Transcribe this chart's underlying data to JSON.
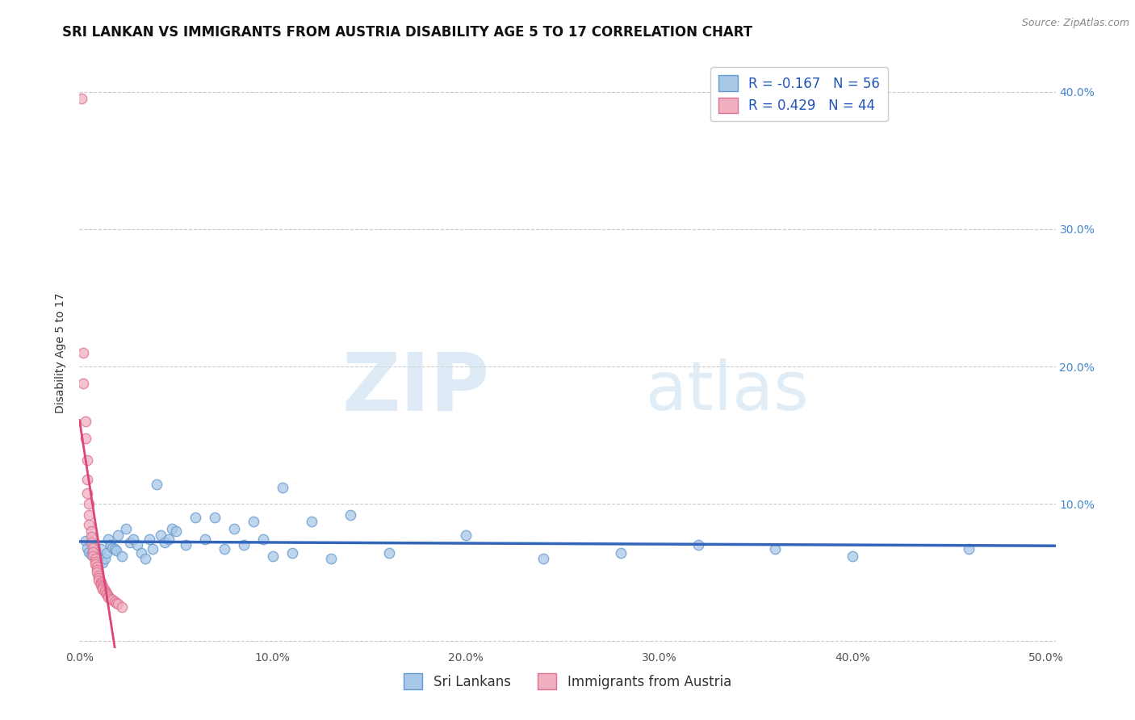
{
  "title": "SRI LANKAN VS IMMIGRANTS FROM AUSTRIA DISABILITY AGE 5 TO 17 CORRELATION CHART",
  "source": "Source: ZipAtlas.com",
  "ylabel": "Disability Age 5 to 17",
  "xlim": [
    0.0,
    0.505
  ],
  "ylim": [
    -0.005,
    0.425
  ],
  "xticks": [
    0.0,
    0.1,
    0.2,
    0.3,
    0.4,
    0.5
  ],
  "xtick_labels": [
    "0.0%",
    "10.0%",
    "20.0%",
    "30.0%",
    "40.0%",
    "50.0%"
  ],
  "yticks": [
    0.0,
    0.1,
    0.2,
    0.3,
    0.4
  ],
  "ytick_labels_right": [
    "",
    "10.0%",
    "20.0%",
    "30.0%",
    "40.0%"
  ],
  "blue_R": -0.167,
  "blue_N": 56,
  "pink_R": 0.429,
  "pink_N": 44,
  "blue_color": "#a8c8e8",
  "pink_color": "#f0b0c0",
  "blue_edge_color": "#6699cc",
  "pink_edge_color": "#e07090",
  "blue_line_color": "#3366bb",
  "pink_line_color": "#dd4477",
  "blue_scatter": [
    [
      0.003,
      0.073
    ],
    [
      0.004,
      0.068
    ],
    [
      0.005,
      0.065
    ],
    [
      0.006,
      0.063
    ],
    [
      0.007,
      0.07
    ],
    [
      0.008,
      0.066
    ],
    [
      0.009,
      0.06
    ],
    [
      0.01,
      0.062
    ],
    [
      0.011,
      0.067
    ],
    [
      0.012,
      0.057
    ],
    [
      0.013,
      0.06
    ],
    [
      0.014,
      0.064
    ],
    [
      0.015,
      0.074
    ],
    [
      0.016,
      0.07
    ],
    [
      0.017,
      0.068
    ],
    [
      0.018,
      0.067
    ],
    [
      0.019,
      0.066
    ],
    [
      0.02,
      0.077
    ],
    [
      0.022,
      0.062
    ],
    [
      0.024,
      0.082
    ],
    [
      0.026,
      0.072
    ],
    [
      0.028,
      0.074
    ],
    [
      0.03,
      0.07
    ],
    [
      0.032,
      0.064
    ],
    [
      0.034,
      0.06
    ],
    [
      0.036,
      0.074
    ],
    [
      0.038,
      0.067
    ],
    [
      0.04,
      0.114
    ],
    [
      0.042,
      0.077
    ],
    [
      0.044,
      0.072
    ],
    [
      0.046,
      0.074
    ],
    [
      0.048,
      0.082
    ],
    [
      0.05,
      0.08
    ],
    [
      0.055,
      0.07
    ],
    [
      0.06,
      0.09
    ],
    [
      0.065,
      0.074
    ],
    [
      0.07,
      0.09
    ],
    [
      0.075,
      0.067
    ],
    [
      0.08,
      0.082
    ],
    [
      0.085,
      0.07
    ],
    [
      0.09,
      0.087
    ],
    [
      0.095,
      0.074
    ],
    [
      0.1,
      0.062
    ],
    [
      0.105,
      0.112
    ],
    [
      0.11,
      0.064
    ],
    [
      0.12,
      0.087
    ],
    [
      0.13,
      0.06
    ],
    [
      0.14,
      0.092
    ],
    [
      0.16,
      0.064
    ],
    [
      0.2,
      0.077
    ],
    [
      0.24,
      0.06
    ],
    [
      0.28,
      0.064
    ],
    [
      0.32,
      0.07
    ],
    [
      0.36,
      0.067
    ],
    [
      0.4,
      0.062
    ],
    [
      0.46,
      0.067
    ]
  ],
  "pink_scatter": [
    [
      0.001,
      0.395
    ],
    [
      0.002,
      0.21
    ],
    [
      0.002,
      0.188
    ],
    [
      0.003,
      0.16
    ],
    [
      0.003,
      0.148
    ],
    [
      0.004,
      0.132
    ],
    [
      0.004,
      0.118
    ],
    [
      0.004,
      0.108
    ],
    [
      0.005,
      0.1
    ],
    [
      0.005,
      0.092
    ],
    [
      0.005,
      0.085
    ],
    [
      0.006,
      0.08
    ],
    [
      0.006,
      0.076
    ],
    [
      0.006,
      0.072
    ],
    [
      0.007,
      0.068
    ],
    [
      0.007,
      0.065
    ],
    [
      0.007,
      0.062
    ],
    [
      0.008,
      0.06
    ],
    [
      0.008,
      0.058
    ],
    [
      0.008,
      0.056
    ],
    [
      0.009,
      0.054
    ],
    [
      0.009,
      0.052
    ],
    [
      0.009,
      0.05
    ],
    [
      0.01,
      0.048
    ],
    [
      0.01,
      0.046
    ],
    [
      0.01,
      0.044
    ],
    [
      0.011,
      0.043
    ],
    [
      0.011,
      0.042
    ],
    [
      0.011,
      0.041
    ],
    [
      0.012,
      0.04
    ],
    [
      0.012,
      0.039
    ],
    [
      0.012,
      0.038
    ],
    [
      0.013,
      0.037
    ],
    [
      0.013,
      0.036
    ],
    [
      0.014,
      0.035
    ],
    [
      0.014,
      0.034
    ],
    [
      0.015,
      0.033
    ],
    [
      0.015,
      0.032
    ],
    [
      0.016,
      0.031
    ],
    [
      0.017,
      0.03
    ],
    [
      0.018,
      0.029
    ],
    [
      0.019,
      0.028
    ],
    [
      0.02,
      0.027
    ],
    [
      0.022,
      0.025
    ]
  ],
  "watermark_zip": "ZIP",
  "watermark_atlas": "atlas",
  "legend_blue_label": "Sri Lankans",
  "legend_pink_label": "Immigrants from Austria",
  "title_fontsize": 12,
  "axis_label_fontsize": 10,
  "tick_fontsize": 10,
  "legend_fontsize": 12,
  "background_color": "#ffffff",
  "grid_color": "#cccccc"
}
